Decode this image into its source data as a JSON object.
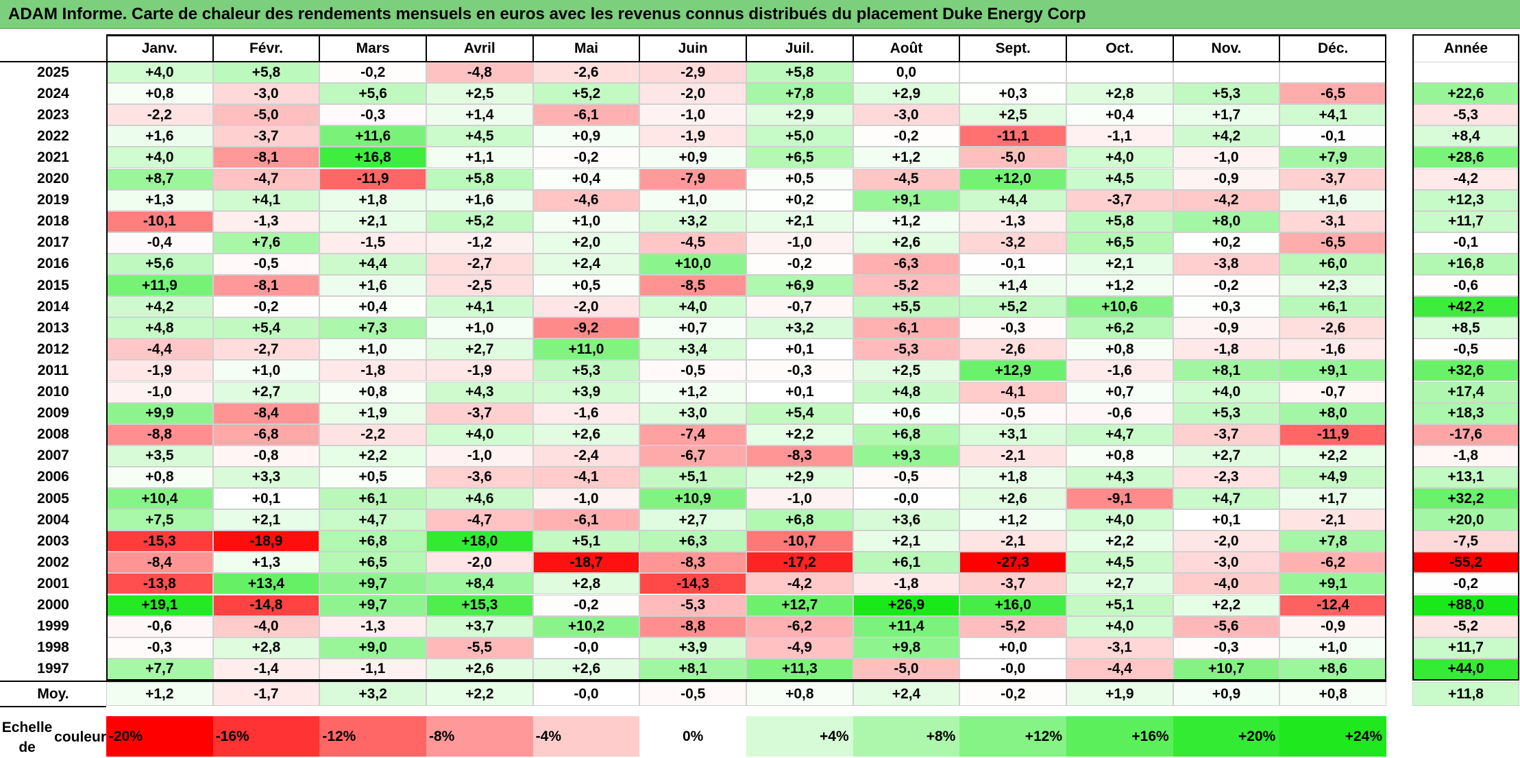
{
  "title": "ADAM Informe. Carte de chaleur des rendements mensuels en euros avec les revenus connus distribués du placement Duke Energy Corp",
  "chart_data": {
    "type": "heatmap",
    "title": "ADAM Informe. Carte de chaleur des rendements mensuels en euros avec les revenus connus distribués du placement Duke Energy Corp",
    "months": [
      "Janv.",
      "Févr.",
      "Mars",
      "Avril",
      "Mai",
      "Juin",
      "Juil.",
      "Août",
      "Sept.",
      "Oct.",
      "Nov.",
      "Déc."
    ],
    "year_column_header": "Année",
    "rows": [
      {
        "year": "2025",
        "values": [
          "+4,0",
          "+5,8",
          "-0,2",
          "-4,8",
          "-2,6",
          "-2,9",
          "+5,8",
          "0,0",
          "",
          "",
          "",
          ""
        ],
        "annual": ""
      },
      {
        "year": "2024",
        "values": [
          "+0,8",
          "-3,0",
          "+5,6",
          "+2,5",
          "+5,2",
          "-2,0",
          "+7,8",
          "+2,9",
          "+0,3",
          "+2,8",
          "+5,3",
          "-6,5"
        ],
        "annual": "+22,6"
      },
      {
        "year": "2023",
        "values": [
          "-2,2",
          "-5,0",
          "-0,3",
          "+1,4",
          "-6,1",
          "-1,0",
          "+2,9",
          "-3,0",
          "+2,5",
          "+0,4",
          "+1,7",
          "+4,1"
        ],
        "annual": "-5,3"
      },
      {
        "year": "2022",
        "values": [
          "+1,6",
          "-3,7",
          "+11,6",
          "+4,5",
          "+0,9",
          "-1,9",
          "+5,0",
          "-0,2",
          "-11,1",
          "-1,1",
          "+4,2",
          "-0,1"
        ],
        "annual": "+8,4"
      },
      {
        "year": "2021",
        "values": [
          "+4,0",
          "-8,1",
          "+16,8",
          "+1,1",
          "-0,2",
          "+0,9",
          "+6,5",
          "+1,2",
          "-5,0",
          "+4,0",
          "-1,0",
          "+7,9"
        ],
        "annual": "+28,6"
      },
      {
        "year": "2020",
        "values": [
          "+8,7",
          "-4,7",
          "-11,9",
          "+5,8",
          "+0,4",
          "-7,9",
          "+0,5",
          "-4,5",
          "+12,0",
          "+4,5",
          "-0,9",
          "-3,7"
        ],
        "annual": "-4,2"
      },
      {
        "year": "2019",
        "values": [
          "+1,3",
          "+4,1",
          "+1,8",
          "+1,6",
          "-4,6",
          "+1,0",
          "+0,2",
          "+9,1",
          "+4,4",
          "-3,7",
          "-4,2",
          "+1,6"
        ],
        "annual": "+12,3"
      },
      {
        "year": "2018",
        "values": [
          "-10,1",
          "-1,3",
          "+2,1",
          "+5,2",
          "+1,0",
          "+3,2",
          "+2,1",
          "+1,2",
          "-1,3",
          "+5,8",
          "+8,0",
          "-3,1"
        ],
        "annual": "+11,7"
      },
      {
        "year": "2017",
        "values": [
          "-0,4",
          "+7,6",
          "-1,5",
          "-1,2",
          "+2,0",
          "-4,5",
          "-1,0",
          "+2,6",
          "-3,2",
          "+6,5",
          "+0,2",
          "-6,5"
        ],
        "annual": "-0,1"
      },
      {
        "year": "2016",
        "values": [
          "+5,6",
          "-0,5",
          "+4,4",
          "-2,7",
          "+2,4",
          "+10,0",
          "-0,2",
          "-6,3",
          "-0,1",
          "+2,1",
          "-3,8",
          "+6,0"
        ],
        "annual": "+16,8"
      },
      {
        "year": "2015",
        "values": [
          "+11,9",
          "-8,1",
          "+1,6",
          "-2,5",
          "+0,5",
          "-8,5",
          "+6,9",
          "-5,2",
          "+1,4",
          "+1,2",
          "-0,2",
          "+2,3"
        ],
        "annual": "-0,6"
      },
      {
        "year": "2014",
        "values": [
          "+4,2",
          "-0,2",
          "+0,4",
          "+4,1",
          "-2,0",
          "+4,0",
          "-0,7",
          "+5,5",
          "+5,2",
          "+10,6",
          "+0,3",
          "+6,1"
        ],
        "annual": "+42,2"
      },
      {
        "year": "2013",
        "values": [
          "+4,8",
          "+5,4",
          "+7,3",
          "+1,0",
          "-9,2",
          "+0,7",
          "+3,2",
          "-6,1",
          "-0,3",
          "+6,2",
          "-0,9",
          "-2,6"
        ],
        "annual": "+8,5"
      },
      {
        "year": "2012",
        "values": [
          "-4,4",
          "-2,7",
          "+1,0",
          "+2,7",
          "+11,0",
          "+3,4",
          "+0,1",
          "-5,3",
          "-2,6",
          "+0,8",
          "-1,8",
          "-1,6"
        ],
        "annual": "-0,5"
      },
      {
        "year": "2011",
        "values": [
          "-1,9",
          "+1,0",
          "-1,8",
          "-1,9",
          "+5,3",
          "-0,5",
          "-0,3",
          "+2,5",
          "+12,9",
          "-1,6",
          "+8,1",
          "+9,1"
        ],
        "annual": "+32,6"
      },
      {
        "year": "2010",
        "values": [
          "-1,0",
          "+2,7",
          "+0,8",
          "+4,3",
          "+3,9",
          "+1,2",
          "+0,1",
          "+4,8",
          "-4,1",
          "+0,7",
          "+4,0",
          "-0,7"
        ],
        "annual": "+17,4"
      },
      {
        "year": "2009",
        "values": [
          "+9,9",
          "-8,4",
          "+1,9",
          "-3,7",
          "-1,6",
          "+3,0",
          "+5,4",
          "+0,6",
          "-0,5",
          "-0,6",
          "+5,3",
          "+8,0"
        ],
        "annual": "+18,3"
      },
      {
        "year": "2008",
        "values": [
          "-8,8",
          "-6,8",
          "-2,2",
          "+4,0",
          "+2,6",
          "-7,4",
          "+2,2",
          "+6,8",
          "+3,1",
          "+4,7",
          "-3,7",
          "-11,9"
        ],
        "annual": "-17,6"
      },
      {
        "year": "2007",
        "values": [
          "+3,5",
          "-0,8",
          "+2,2",
          "-1,0",
          "-2,4",
          "-6,7",
          "-8,3",
          "+9,3",
          "-2,1",
          "+0,8",
          "+2,7",
          "+2,2"
        ],
        "annual": "-1,8"
      },
      {
        "year": "2006",
        "values": [
          "+0,8",
          "+3,3",
          "+0,5",
          "-3,6",
          "-4,1",
          "+5,1",
          "+2,9",
          "-0,5",
          "+1,8",
          "+4,3",
          "-2,3",
          "+4,9"
        ],
        "annual": "+13,1"
      },
      {
        "year": "2005",
        "values": [
          "+10,4",
          "+0,1",
          "+6,1",
          "+4,6",
          "-1,0",
          "+10,9",
          "-1,0",
          "-0,0",
          "+2,6",
          "-9,1",
          "+4,7",
          "+1,7"
        ],
        "annual": "+32,2"
      },
      {
        "year": "2004",
        "values": [
          "+7,5",
          "+2,1",
          "+4,7",
          "-4,7",
          "-6,1",
          "+2,7",
          "+6,8",
          "+3,6",
          "+1,2",
          "+4,0",
          "+0,1",
          "-2,1"
        ],
        "annual": "+20,0"
      },
      {
        "year": "2003",
        "values": [
          "-15,3",
          "-18,9",
          "+6,8",
          "+18,0",
          "+5,1",
          "+6,3",
          "-10,7",
          "+2,1",
          "-2,1",
          "+2,2",
          "-2,0",
          "+7,8"
        ],
        "annual": "-7,5"
      },
      {
        "year": "2002",
        "values": [
          "-8,4",
          "+1,3",
          "+6,5",
          "-2,0",
          "-18,7",
          "-8,3",
          "-17,2",
          "+6,1",
          "-27,3",
          "+4,5",
          "-3,0",
          "-6,2"
        ],
        "annual": "-55,2"
      },
      {
        "year": "2001",
        "values": [
          "-13,8",
          "+13,4",
          "+9,7",
          "+8,4",
          "+2,8",
          "-14,3",
          "-4,2",
          "-1,8",
          "-3,7",
          "+2,7",
          "-4,0",
          "+9,1"
        ],
        "annual": "-0,2"
      },
      {
        "year": "2000",
        "values": [
          "+19,1",
          "-14,8",
          "+9,7",
          "+15,3",
          "-0,2",
          "-5,3",
          "+12,7",
          "+26,9",
          "+16,0",
          "+5,1",
          "+2,2",
          "-12,4"
        ],
        "annual": "+88,0"
      },
      {
        "year": "1999",
        "values": [
          "-0,6",
          "-4,0",
          "-1,3",
          "+3,7",
          "+10,2",
          "-8,8",
          "-6,2",
          "+11,4",
          "-5,2",
          "+4,0",
          "-5,6",
          "-0,9"
        ],
        "annual": "-5,2"
      },
      {
        "year": "1998",
        "values": [
          "-0,3",
          "+2,8",
          "+9,0",
          "-5,5",
          "-0,0",
          "+3,9",
          "-4,9",
          "+9,8",
          "+0,0",
          "-3,1",
          "-0,3",
          "+1,0"
        ],
        "annual": "+11,7"
      },
      {
        "year": "1997",
        "values": [
          "+7,7",
          "-1,4",
          "-1,1",
          "+2,6",
          "+2,6",
          "+8,1",
          "+11,3",
          "-5,0",
          "-0,0",
          "-4,4",
          "+10,7",
          "+8,6"
        ],
        "annual": "+44,0"
      }
    ],
    "average_row": {
      "label": "Moy.",
      "values": [
        "+1,2",
        "-1,7",
        "+3,2",
        "+2,2",
        "-0,0",
        "-0,5",
        "+0,8",
        "+2,4",
        "-0,2",
        "+1,9",
        "+0,9",
        "+0,8"
      ],
      "annual": "+11,8"
    },
    "color_scale": {
      "label_line1": "Echelle de",
      "label_line2": "couleur",
      "steps": [
        {
          "label": "-20%",
          "value": -20,
          "color": "#ff0000"
        },
        {
          "label": "-16%",
          "value": -16,
          "color": "#ff3333"
        },
        {
          "label": "-12%",
          "value": -12,
          "color": "#ff6666"
        },
        {
          "label": "-8%",
          "value": -8,
          "color": "#ff9999"
        },
        {
          "label": "-4%",
          "value": -4,
          "color": "#ffcccc"
        },
        {
          "label": "0%",
          "value": 0,
          "color": "#ffffff"
        },
        {
          "label": "+4%",
          "value": 4,
          "color": "#d6fbd6"
        },
        {
          "label": "+8%",
          "value": 8,
          "color": "#adf7ad"
        },
        {
          "label": "+12%",
          "value": 12,
          "color": "#85f385"
        },
        {
          "label": "+16%",
          "value": 16,
          "color": "#5cef5c"
        },
        {
          "label": "+20%",
          "value": 20,
          "color": "#33eb33"
        },
        {
          "label": "+24%",
          "value": 24,
          "color": "#1fe81f"
        }
      ]
    }
  }
}
